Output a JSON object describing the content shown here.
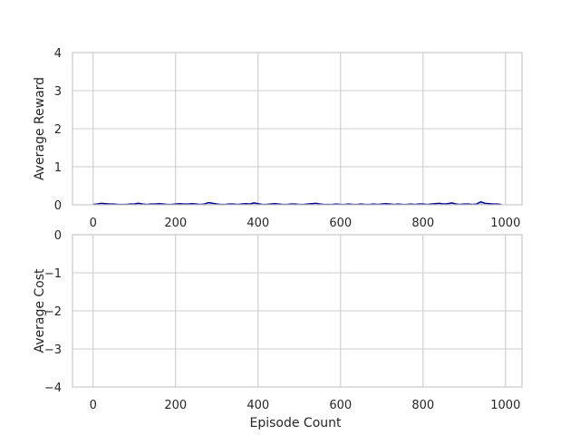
{
  "chart_data": [
    {
      "type": "line",
      "title": "",
      "xlabel": "",
      "ylabel": "Average Reward",
      "xlim": [
        -50,
        1040
      ],
      "ylim": [
        0,
        4
      ],
      "xticks": [
        0,
        200,
        400,
        600,
        800,
        1000
      ],
      "yticks": [
        0,
        1,
        2,
        3,
        4
      ],
      "xtick_labels": [
        "0",
        "200",
        "400",
        "600",
        "800",
        "1000"
      ],
      "ytick_labels": [
        "0",
        "1",
        "2",
        "3",
        "4"
      ],
      "grid": true,
      "series": [
        {
          "color": "#00008b",
          "fill_color": "#4169e1",
          "x": [
            0,
            10,
            20,
            30,
            40,
            50,
            60,
            70,
            80,
            90,
            100,
            110,
            120,
            130,
            140,
            150,
            160,
            170,
            180,
            190,
            200,
            210,
            220,
            230,
            240,
            250,
            260,
            270,
            280,
            290,
            300,
            310,
            320,
            330,
            340,
            350,
            360,
            370,
            380,
            390,
            400,
            410,
            420,
            430,
            440,
            450,
            460,
            470,
            480,
            490,
            500,
            510,
            520,
            530,
            540,
            550,
            560,
            570,
            580,
            590,
            600,
            610,
            620,
            630,
            640,
            650,
            660,
            670,
            680,
            690,
            700,
            710,
            720,
            730,
            740,
            750,
            760,
            770,
            780,
            790,
            800,
            810,
            820,
            830,
            840,
            850,
            860,
            870,
            880,
            890,
            900,
            910,
            920,
            930,
            940,
            950,
            960,
            970,
            980,
            990
          ],
          "values": [
            0.01,
            0.02,
            0.04,
            0.03,
            0.02,
            0.02,
            0.01,
            0.01,
            0.01,
            0.02,
            0.02,
            0.04,
            0.02,
            0.01,
            0.02,
            0.02,
            0.03,
            0.02,
            0.01,
            0.01,
            0.02,
            0.03,
            0.02,
            0.02,
            0.03,
            0.02,
            0.01,
            0.02,
            0.06,
            0.04,
            0.02,
            0.01,
            0.01,
            0.02,
            0.02,
            0.01,
            0.02,
            0.03,
            0.02,
            0.05,
            0.03,
            0.01,
            0.01,
            0.02,
            0.03,
            0.02,
            0.01,
            0.01,
            0.02,
            0.02,
            0.01,
            0.01,
            0.02,
            0.03,
            0.04,
            0.02,
            0.01,
            0.01,
            0.01,
            0.02,
            0.01,
            0.01,
            0.02,
            0.01,
            0.01,
            0.02,
            0.01,
            0.01,
            0.02,
            0.01,
            0.02,
            0.03,
            0.02,
            0.01,
            0.02,
            0.01,
            0.01,
            0.02,
            0.01,
            0.02,
            0.02,
            0.01,
            0.02,
            0.03,
            0.04,
            0.02,
            0.03,
            0.05,
            0.02,
            0.01,
            0.02,
            0.02,
            0.01,
            0.02,
            0.08,
            0.04,
            0.03,
            0.02,
            0.02,
            0.01
          ]
        }
      ]
    },
    {
      "type": "line",
      "title": "",
      "xlabel": "Episode Count",
      "ylabel": "Average Cost",
      "xlim": [
        -50,
        1040
      ],
      "ylim": [
        -4,
        0
      ],
      "xticks": [
        0,
        200,
        400,
        600,
        800,
        1000
      ],
      "yticks": [
        0,
        -1,
        -2,
        -3,
        -4
      ],
      "xtick_labels": [
        "0",
        "200",
        "400",
        "600",
        "800",
        "1000"
      ],
      "ytick_labels": [
        "0",
        "−1",
        "−2",
        "−3",
        "−4"
      ],
      "grid": true,
      "series": []
    }
  ]
}
